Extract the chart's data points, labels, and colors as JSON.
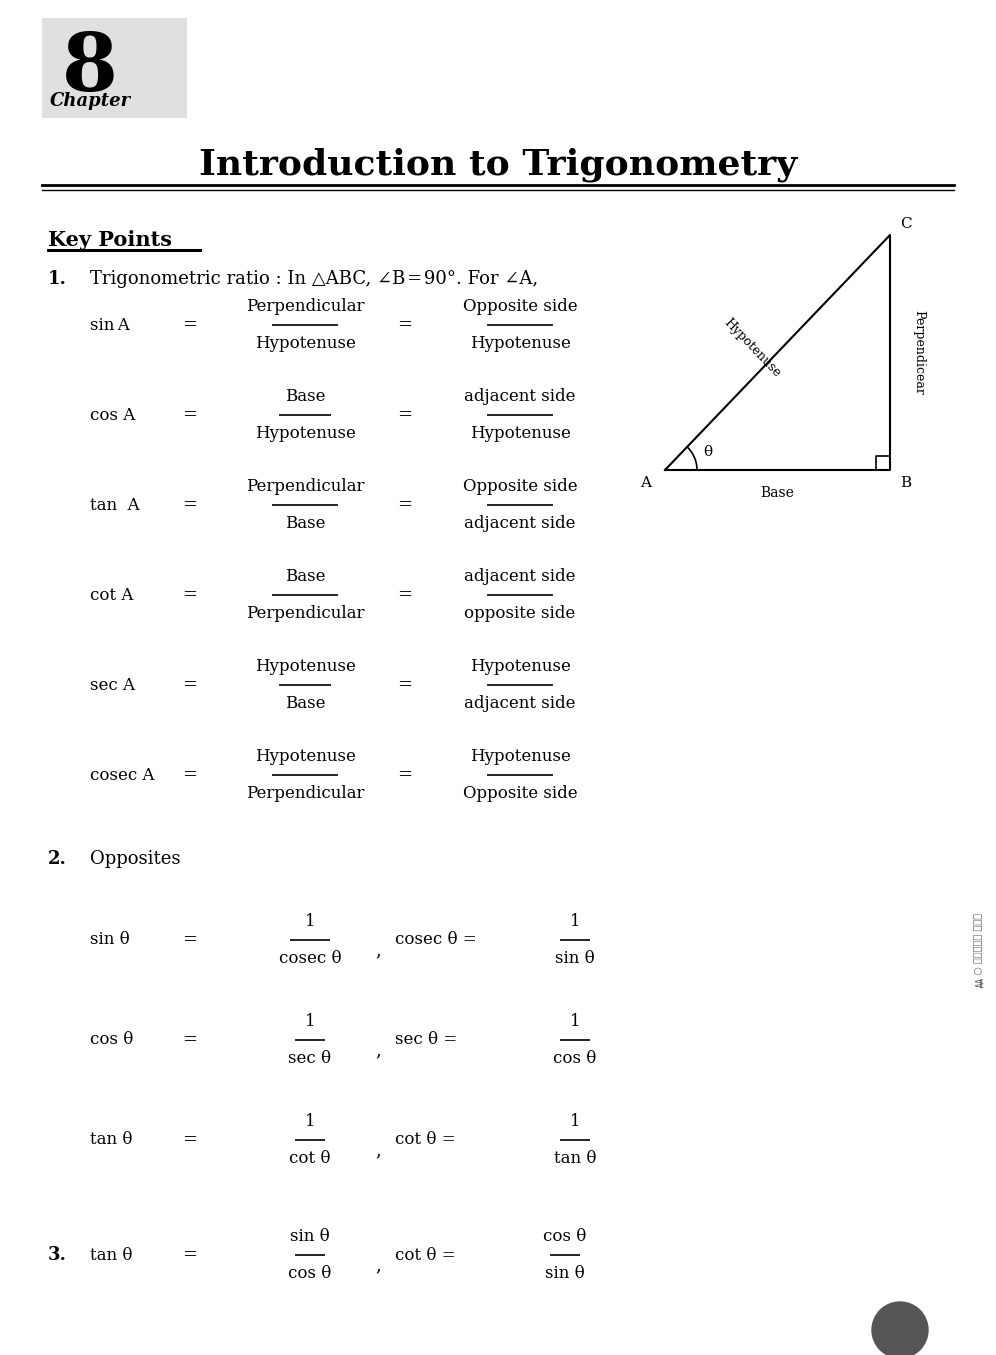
{
  "bg_color": "#ffffff",
  "chapter_box_color": "#e0e0e0",
  "chapter_num": "8",
  "chapter_label": "Chapter",
  "title": "Introduction to Trigonometry",
  "key_points_label": "Key Points",
  "point1_label": "1.",
  "point1_text": "Trigonometric ratio : In △ABC, ∠B = 90°. For ∠A,",
  "point2_label": "2.",
  "point2_text": "Opposites",
  "point3_label": "3.",
  "trig_rows": [
    {
      "label": "sin A",
      "num1": "Perpendicular",
      "den1": "Hypotenuse",
      "num2": "Opposite side",
      "den2": "Hypotenuse"
    },
    {
      "label": "cos A",
      "num1": "Base",
      "den1": "Hypotenuse",
      "num2": "adjacent side",
      "den2": "Hypotenuse"
    },
    {
      "label": "tan  A",
      "num1": "Perpendicular",
      "den1": "Base",
      "num2": "Opposite side",
      "den2": "adjacent side"
    },
    {
      "label": "cot A",
      "num1": "Base",
      "den1": "Perpendicular",
      "num2": "adjacent side",
      "den2": "opposite side"
    },
    {
      "label": "sec A",
      "num1": "Hypotenuse",
      "den1": "Base",
      "num2": "Hypotenuse",
      "den2": "adjacent side"
    },
    {
      "label": "cosec A",
      "num1": "Hypotenuse",
      "den1": "Perpendicular",
      "num2": "Hypotenuse",
      "den2": "Opposite side"
    }
  ],
  "opp_rows": [
    {
      "label": "sin θ",
      "expr1_num": "1",
      "expr1_den": "cosec θ",
      "expr2_lhs": "cosec θ =",
      "expr2_num": "1",
      "expr2_den": "sin θ"
    },
    {
      "label": "cos θ",
      "expr1_num": "1",
      "expr1_den": "sec θ",
      "expr2_lhs": "sec θ =",
      "expr2_num": "1",
      "expr2_den": "cos θ"
    },
    {
      "label": "tan θ",
      "expr1_num": "1",
      "expr1_den": "cot θ",
      "expr2_lhs": "cot θ =",
      "expr2_num": "1",
      "expr2_den": "tan θ"
    }
  ],
  "tan_row": {
    "label": "tan θ",
    "expr1_num": "sin θ",
    "expr1_den": "cos θ",
    "expr2_lhs": "cot θ =",
    "expr2_num": "cos θ",
    "expr2_den": "sin θ"
  }
}
